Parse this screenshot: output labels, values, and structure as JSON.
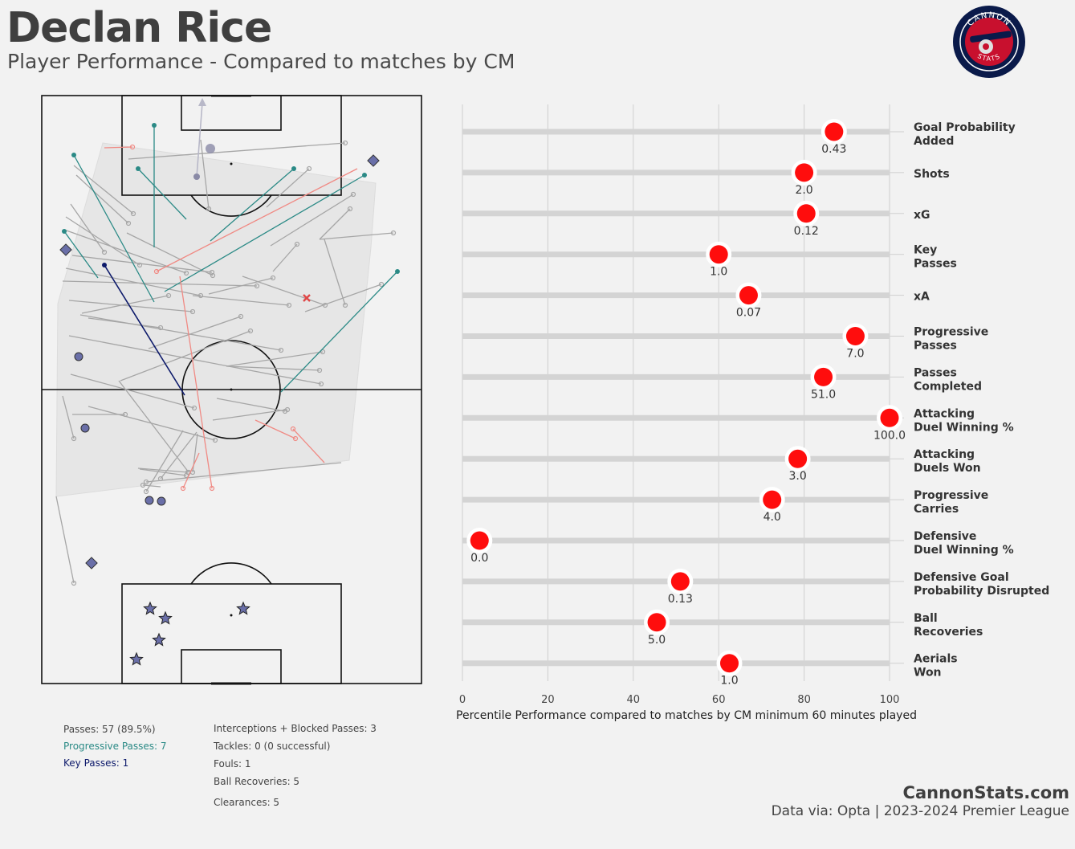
{
  "header": {
    "title": "Declan Rice",
    "subtitle": "Player Performance - Compared to matches by CM"
  },
  "logo": {
    "top_text": "CANNON",
    "bottom_text": "STATS",
    "colors": {
      "outer": "#0a1a4a",
      "inner": "#c8102e",
      "ring": "#ffffff"
    },
    "icon": "cannon-icon"
  },
  "pitch_map": {
    "colors": {
      "pass": "#a6a6a6",
      "progressive_pass": "#2b8a86",
      "key_pass": "#0d1a6b",
      "failed_pass": "#f08a84",
      "defensive_action": "#6a6fa8",
      "foul": "#e04848",
      "territory": "#e6e6e6"
    },
    "legend_markers": [
      "circle-icon",
      "diamond-icon",
      "star-icon",
      "cross-icon"
    ]
  },
  "stats_left": [
    {
      "text": "Passes: 57 (89.5%)",
      "color": "#444444"
    },
    {
      "text": "Progressive Passes: 7",
      "color": "#2b8a86"
    },
    {
      "text": "Key Passes: 1",
      "color": "#0d1a6b"
    }
  ],
  "stats_right": [
    {
      "text": "Interceptions + Blocked Passes: 3"
    },
    {
      "text": "Tackles: 0 (0 successful)"
    },
    {
      "text": "Fouls: 1"
    },
    {
      "text": "Ball Recoveries: 5"
    },
    {
      "text": "Clearances: 5"
    }
  ],
  "chart_data": {
    "type": "scatter",
    "orientation": "horizontal-lollipop",
    "xlabel": "Percentile Performance compared to matches by CM minimum 60 minutes played",
    "xlim": [
      0,
      100
    ],
    "xticks": [
      0,
      20,
      40,
      60,
      80,
      100
    ],
    "grid": true,
    "marker_color": "#ff0d0d",
    "track_color": "#d4d4d4",
    "categories": [
      [
        "Goal Probability",
        "Added"
      ],
      [
        "Shots"
      ],
      [
        "xG"
      ],
      [
        "Key",
        "Passes"
      ],
      [
        "xA"
      ],
      [
        "Progressive",
        "Passes"
      ],
      [
        "Passes",
        "Completed"
      ],
      [
        "Attacking",
        "Duel Winning %"
      ],
      [
        "Attacking",
        "Duels Won"
      ],
      [
        "Progressive",
        "Carries"
      ],
      [
        "Defensive",
        "Duel Winning %"
      ],
      [
        "Defensive Goal",
        "Probability Disrupted"
      ],
      [
        "Ball",
        "Recoveries"
      ],
      [
        "Aerials",
        "Won"
      ]
    ],
    "percentiles": [
      87,
      80,
      80.5,
      60,
      67,
      92,
      84.5,
      100,
      78.5,
      72.5,
      4,
      51,
      45.5,
      62.5
    ],
    "value_labels": [
      "0.43",
      "2.0",
      "0.12",
      "1.0",
      "0.07",
      "7.0",
      "51.0",
      "100.0",
      "3.0",
      "4.0",
      "0.0",
      "0.13",
      "5.0",
      "1.0"
    ]
  },
  "footer": {
    "brand": "CannonStats.com",
    "data_source": "Data via: Opta | 2023-2024 Premier League"
  }
}
